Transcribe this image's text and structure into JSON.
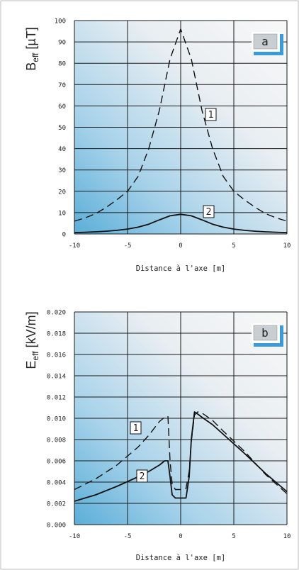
{
  "chart_data": [
    {
      "type": "line",
      "panel_label": "a",
      "ylabel_base": "B",
      "ylabel_sub": "eff",
      "ylabel_unit": " [µT]",
      "xlabel": "Distance à l'axe [m]",
      "xlim": [
        -10,
        10
      ],
      "ylim": [
        0,
        100
      ],
      "xticks": [
        "-10",
        "-5",
        "0",
        "5",
        "10"
      ],
      "yticks": [
        "0",
        "10",
        "20",
        "30",
        "40",
        "50",
        "60",
        "70",
        "80",
        "90",
        "100"
      ],
      "grid": true,
      "series": [
        {
          "name": "1",
          "style": "dashed",
          "x": [
            -10,
            -9,
            -8,
            -7,
            -6,
            -5,
            -4,
            -3,
            -2,
            -1,
            0,
            1,
            2,
            3,
            4,
            5,
            6,
            7,
            8,
            9,
            10
          ],
          "y": [
            6,
            7.5,
            9.5,
            12.5,
            16,
            20,
            27,
            40,
            58,
            82,
            96,
            82,
            58,
            40,
            27,
            20,
            16,
            12.5,
            9.5,
            7.5,
            6
          ]
        },
        {
          "name": "2",
          "style": "solid",
          "x": [
            -10,
            -9,
            -8,
            -7,
            -6,
            -5,
            -4,
            -3,
            -2,
            -1,
            0,
            1,
            2,
            3,
            4,
            5,
            6,
            7,
            8,
            9,
            10
          ],
          "y": [
            0.6,
            0.8,
            1.0,
            1.3,
            1.7,
            2.3,
            3.2,
            4.6,
            6.6,
            8.5,
            9.2,
            8.5,
            6.6,
            4.6,
            3.2,
            2.3,
            1.7,
            1.3,
            1.0,
            0.8,
            0.6
          ]
        }
      ]
    },
    {
      "type": "line",
      "panel_label": "b",
      "ylabel_base": "E",
      "ylabel_sub": "eff",
      "ylabel_unit": " [kV/m]",
      "xlabel": "Distance à l'axe [m]",
      "xlim": [
        -10,
        10
      ],
      "ylim": [
        0,
        0.02
      ],
      "xticks": [
        "-10",
        "-5",
        "0",
        "5",
        "10"
      ],
      "yticks": [
        "0.000",
        "0.002",
        "0.004",
        "0.006",
        "0.008",
        "0.010",
        "0.012",
        "0.014",
        "0.016",
        "0.018",
        "0.020"
      ],
      "grid": true,
      "series": [
        {
          "name": "1",
          "style": "dashed",
          "x": [
            -10,
            -8,
            -6,
            -4,
            -3,
            -2,
            -1.5,
            -1.2,
            -1.0,
            -0.8,
            -0.5,
            0,
            0.5,
            0.8,
            1.0,
            1.3,
            1.6,
            2,
            3,
            4,
            6,
            8,
            10
          ],
          "y": [
            0.0033,
            0.0043,
            0.0056,
            0.0073,
            0.0084,
            0.0097,
            0.0101,
            0.0102,
            0.006,
            0.0038,
            0.0033,
            0.0033,
            0.0034,
            0.005,
            0.0078,
            0.0103,
            0.0106,
            0.0105,
            0.0098,
            0.0088,
            0.0069,
            0.0047,
            0.0029
          ]
        },
        {
          "name": "2",
          "style": "solid",
          "x": [
            -10,
            -8,
            -6,
            -4,
            -3,
            -2,
            -1.5,
            -1.2,
            -1.0,
            -0.8,
            -0.5,
            0,
            0.5,
            0.8,
            1.0,
            1.3,
            1.6,
            2,
            3,
            4,
            6,
            8,
            10
          ],
          "y": [
            0.0022,
            0.0028,
            0.0036,
            0.0045,
            0.005,
            0.0056,
            0.006,
            0.006,
            0.0045,
            0.0028,
            0.0025,
            0.0025,
            0.0025,
            0.0045,
            0.008,
            0.0106,
            0.0104,
            0.0101,
            0.0094,
            0.0085,
            0.0067,
            0.0048,
            0.0031
          ]
        }
      ]
    }
  ],
  "colors": {
    "gradient_light": "#f6f6f6",
    "gradient_blue": "#5fb0d8",
    "grid": "#111111",
    "label_box_fill": "#c9ced3",
    "label_box_accent": "#3d9ad8"
  }
}
